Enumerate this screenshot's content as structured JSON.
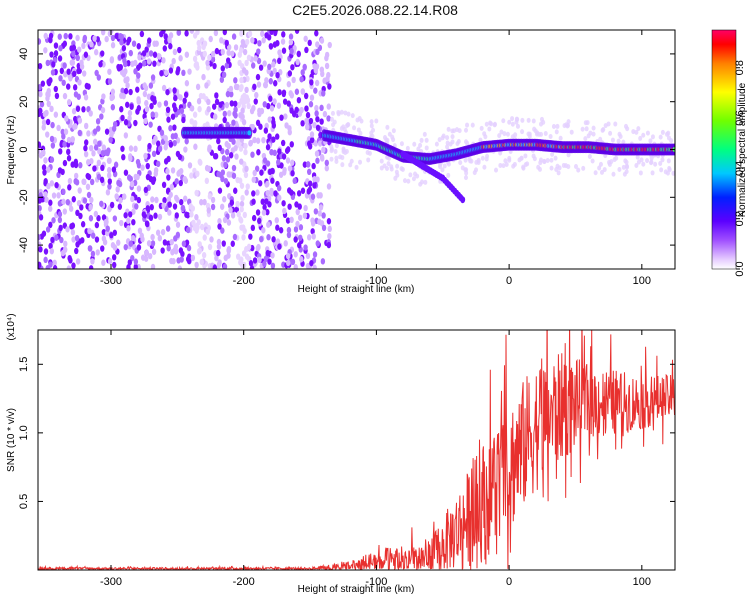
{
  "title": "C2E5.2026.088.22.14.R08",
  "chart_data": [
    {
      "type": "heatmap",
      "name": "spectrogram",
      "xlabel": "Height of straight line (km)",
      "ylabel": "Frequency (Hz)",
      "xlim": [
        -355,
        125
      ],
      "ylim": [
        -50,
        50
      ],
      "xticks": [
        -300,
        -200,
        -100,
        0,
        100
      ],
      "yticks": [
        -40,
        -20,
        0,
        20,
        40
      ],
      "colorbar": {
        "label": "Normalized spectral amplitude",
        "range": [
          0,
          0.95
        ],
        "ticks": [
          0.0,
          0.2,
          0.4,
          0.6,
          0.8
        ]
      },
      "ridge": {
        "description_points": [
          {
            "x": -245,
            "f": 7
          },
          {
            "x": -200,
            "f": 7
          },
          {
            "x": -140,
            "f": 6
          },
          {
            "x": -120,
            "f": 4
          },
          {
            "x": -100,
            "f": 2
          },
          {
            "x": -80,
            "f": -3
          },
          {
            "x": -60,
            "f": -4
          },
          {
            "x": -40,
            "f": -2
          },
          {
            "x": -20,
            "f": 1
          },
          {
            "x": 0,
            "f": 2
          },
          {
            "x": 20,
            "f": 2
          },
          {
            "x": 40,
            "f": 1
          },
          {
            "x": 60,
            "f": 1
          },
          {
            "x": 80,
            "f": 0
          },
          {
            "x": 100,
            "f": 0
          },
          {
            "x": 125,
            "f": 0
          }
        ],
        "branch": [
          {
            "x": -80,
            "f": -2
          },
          {
            "x": -65,
            "f": -7
          },
          {
            "x": -50,
            "f": -12
          },
          {
            "x": -35,
            "f": -21
          }
        ]
      }
    },
    {
      "type": "line",
      "name": "snr",
      "xlabel": "Height of straight line (km)",
      "ylabel": "SNR (10 * v/v)",
      "yscale_label": "(x10⁴)",
      "xlim": [
        -355,
        125
      ],
      "ylim": [
        0,
        1.75
      ],
      "xticks": [
        -300,
        -200,
        -100,
        0,
        100
      ],
      "yticks": [
        0.5,
        1.0,
        1.5
      ],
      "ytick_labels": [
        "0.5",
        "1.0",
        "1.5"
      ],
      "color": "#e8302e",
      "envelope": [
        {
          "x": -355,
          "base": 0.01,
          "amp": 0.01
        },
        {
          "x": -150,
          "base": 0.01,
          "amp": 0.01
        },
        {
          "x": -120,
          "base": 0.02,
          "amp": 0.05
        },
        {
          "x": -100,
          "base": 0.05,
          "amp": 0.12
        },
        {
          "x": -60,
          "base": 0.08,
          "amp": 0.15
        },
        {
          "x": -40,
          "base": 0.25,
          "amp": 0.35
        },
        {
          "x": -20,
          "base": 0.45,
          "amp": 0.55
        },
        {
          "x": 0,
          "base": 0.7,
          "amp": 0.6
        },
        {
          "x": 20,
          "base": 1.0,
          "amp": 0.6
        },
        {
          "x": 40,
          "base": 1.15,
          "amp": 0.5
        },
        {
          "x": 60,
          "base": 1.2,
          "amp": 0.35
        },
        {
          "x": 80,
          "base": 1.2,
          "amp": 0.3
        },
        {
          "x": 100,
          "base": 1.2,
          "amp": 0.25
        },
        {
          "x": 125,
          "base": 1.25,
          "amp": 0.2
        }
      ]
    }
  ]
}
